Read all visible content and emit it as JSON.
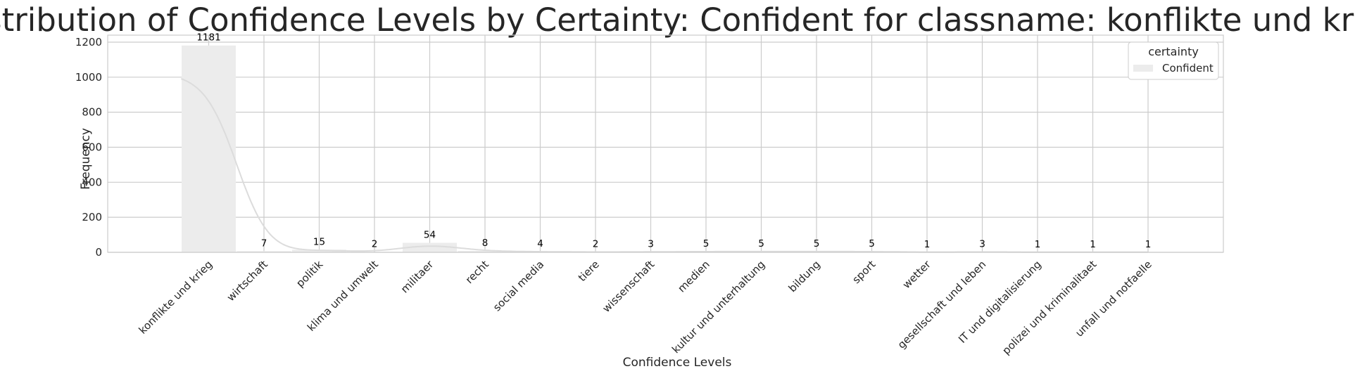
{
  "chart_data": {
    "type": "bar",
    "title": "Distribution of Confidence Levels by Certainty: Confident for classname: konflikte und krieg",
    "xlabel": "Confidence Levels",
    "ylabel": "Frequency",
    "categories": [
      "konflikte und krieg",
      "wirtschaft",
      "politik",
      "klima und umwelt",
      "militaer",
      "recht",
      "social media",
      "tiere",
      "wissenschaft",
      "medien",
      "kultur und unterhaltung",
      "bildung",
      "sport",
      "wetter",
      "gesellschaft und leben",
      "IT und digitalisierung",
      "polizei und kriminalitaet",
      "unfall und notfaelle"
    ],
    "series": [
      {
        "name": "Confident",
        "values": [
          1181,
          7,
          15,
          2,
          54,
          8,
          4,
          2,
          3,
          5,
          5,
          5,
          5,
          1,
          3,
          1,
          1,
          1
        ]
      }
    ],
    "ylim": [
      0,
      1240
    ],
    "yticks": [
      0,
      200,
      400,
      600,
      800,
      1000,
      1200
    ],
    "grid": true,
    "kde": true,
    "legend": {
      "title": "certainty",
      "position": "top-right"
    },
    "colors": {
      "bar": "#ececec",
      "kde": "#dcdcdc",
      "grid": "#cccccc",
      "frame": "#cccccc"
    }
  }
}
